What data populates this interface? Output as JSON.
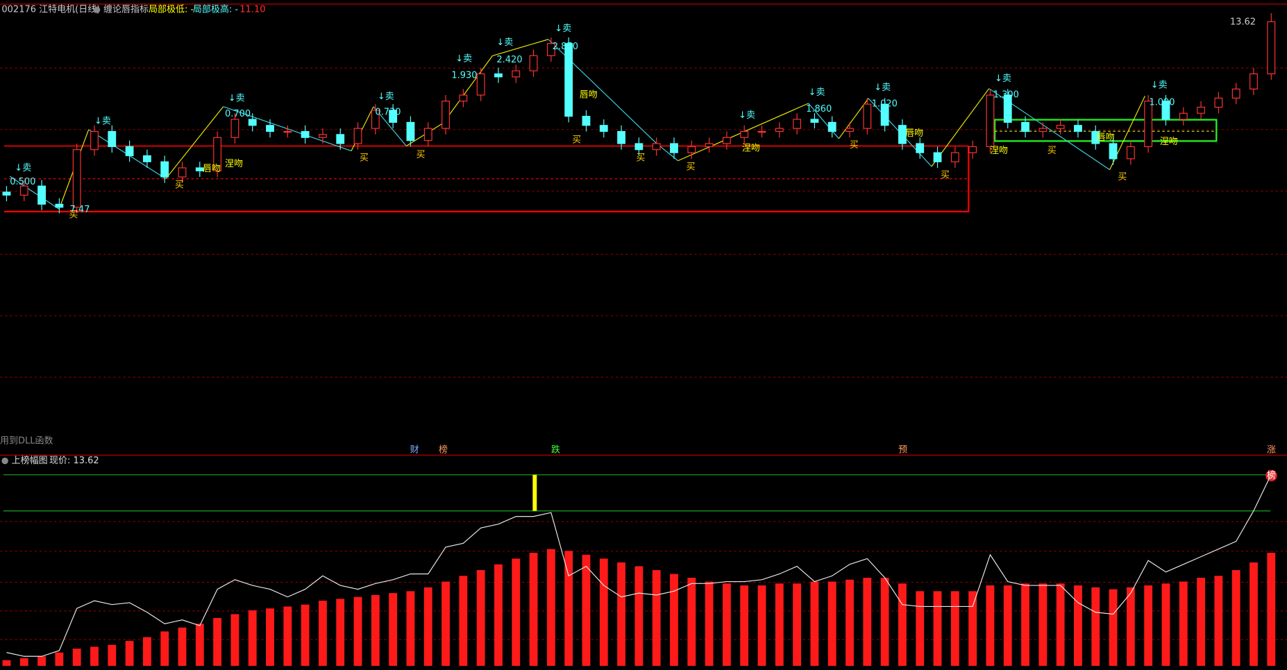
{
  "chart_data": [
    {
      "type": "candlestick",
      "title": "002176 江特电机(日线)",
      "indicator": "缠论唇指标",
      "low_label": "局部极低: -",
      "high_label": "局部极高: -",
      "level_label": "11.10",
      "price_label": "13.62",
      "note": "用到DLL函数",
      "up_color": "#ff3232",
      "down_color": "#54ffff",
      "ylim": [
        0,
        14.2
      ],
      "open": [
        8.0,
        7.9,
        8.2,
        7.6,
        7.5,
        9.4,
        10.0,
        9.5,
        9.2,
        9.0,
        8.5,
        8.8,
        8.7,
        9.8,
        10.4,
        10.2,
        10.0,
        10.0,
        9.8,
        9.9,
        9.6,
        10.1,
        10.7,
        10.3,
        9.7,
        10.1,
        11.0,
        11.2,
        11.9,
        11.8,
        12.0,
        12.5,
        12.9,
        10.5,
        10.2,
        10.0,
        9.6,
        9.4,
        9.6,
        9.3,
        9.5,
        9.6,
        9.8,
        10.0,
        10.0,
        10.1,
        10.4,
        10.3,
        10.0,
        10.1,
        10.9,
        10.2,
        9.6,
        9.3,
        9.0,
        9.3,
        9.5,
        11.2,
        10.3,
        10.0,
        10.1,
        10.2,
        10.0,
        9.6,
        9.1,
        9.5,
        11.0,
        10.4,
        10.6,
        10.8,
        11.1,
        11.4,
        11.9
      ],
      "high": [
        8.2,
        8.4,
        8.4,
        7.8,
        9.6,
        10.2,
        10.2,
        9.7,
        9.4,
        9.2,
        9.0,
        9.0,
        10.0,
        10.6,
        10.6,
        10.4,
        10.2,
        10.2,
        10.1,
        10.1,
        10.3,
        10.9,
        10.9,
        10.5,
        10.3,
        11.2,
        11.4,
        12.1,
        12.1,
        12.2,
        12.7,
        13.1,
        13.1,
        10.7,
        10.4,
        10.2,
        9.8,
        9.8,
        9.8,
        9.7,
        9.8,
        10.0,
        10.2,
        10.2,
        10.3,
        10.6,
        10.6,
        10.5,
        10.3,
        11.1,
        11.1,
        10.4,
        9.8,
        9.5,
        9.5,
        9.7,
        11.4,
        11.4,
        10.5,
        10.3,
        10.4,
        10.4,
        10.2,
        9.8,
        9.7,
        11.2,
        11.2,
        10.8,
        11.0,
        11.3,
        11.6,
        12.1,
        13.9
      ],
      "low": [
        7.7,
        7.7,
        7.4,
        7.3,
        7.3,
        9.2,
        9.3,
        9.0,
        8.8,
        8.3,
        8.3,
        8.5,
        8.5,
        9.6,
        10.0,
        9.8,
        9.8,
        9.6,
        9.6,
        9.4,
        9.4,
        9.9,
        10.1,
        9.5,
        9.5,
        9.9,
        10.8,
        11.0,
        11.6,
        11.6,
        11.8,
        12.3,
        10.3,
        10.0,
        9.8,
        9.4,
        9.2,
        9.2,
        9.1,
        9.1,
        9.3,
        9.4,
        9.6,
        9.8,
        9.8,
        9.9,
        10.1,
        9.8,
        9.8,
        9.9,
        10.0,
        9.4,
        9.1,
        8.8,
        8.8,
        9.1,
        9.3,
        10.1,
        9.8,
        9.8,
        9.9,
        9.8,
        9.4,
        8.9,
        8.9,
        9.3,
        10.2,
        10.2,
        10.4,
        10.6,
        10.9,
        11.2,
        11.7
      ],
      "close": [
        7.9,
        8.2,
        7.6,
        7.5,
        9.4,
        10.0,
        9.5,
        9.2,
        9.0,
        8.5,
        8.8,
        8.7,
        9.8,
        10.4,
        10.2,
        10.0,
        10.0,
        9.8,
        9.9,
        9.6,
        10.1,
        10.7,
        10.3,
        9.7,
        10.1,
        11.0,
        11.2,
        11.9,
        11.8,
        12.0,
        12.5,
        12.9,
        10.5,
        10.2,
        10.0,
        9.6,
        9.4,
        9.6,
        9.3,
        9.5,
        9.6,
        9.8,
        10.0,
        10.0,
        10.1,
        10.4,
        10.3,
        10.0,
        10.1,
        10.9,
        10.2,
        9.6,
        9.3,
        9.0,
        9.3,
        9.5,
        11.2,
        10.3,
        10.0,
        10.1,
        10.2,
        10.0,
        9.6,
        9.1,
        9.5,
        11.0,
        10.4,
        10.6,
        10.8,
        11.1,
        11.4,
        11.9,
        13.62
      ],
      "sell_labels": [
        "↓卖",
        "↓卖",
        "↓卖",
        "↓卖",
        "↓卖",
        "↓卖",
        "↓卖",
        "↓卖",
        "↓卖",
        "↓卖",
        "↓卖",
        "↓卖"
      ],
      "buy_labels": [
        "买",
        "买",
        "买",
        "买",
        "买",
        "买",
        "买",
        "买",
        "买",
        "买",
        "买"
      ],
      "price_labels": [
        "0.500",
        "7.47",
        "0.700",
        "0.730",
        "1.930",
        "2.420",
        "2.870",
        "1.860",
        "1.020",
        "1.300",
        "1.090"
      ],
      "pattern_labels": [
        "唇吻",
        "涅吻",
        "唇吻",
        "涅吻",
        "唇吻",
        "涅吻",
        "唇吻",
        "涅吻"
      ]
    },
    {
      "type": "bar",
      "title": "上榜幅图",
      "subtitle": "现价: 13.62",
      "ylim": [
        0,
        110
      ],
      "markers": [
        "财",
        "榜",
        "跌",
        "预",
        "涨",
        "榜"
      ],
      "series": [
        {
          "type": "bar",
          "color": "#ff1a1a",
          "values": [
            3,
            4,
            5,
            7,
            9,
            10,
            11,
            13,
            15,
            18,
            20,
            22,
            25,
            27,
            29,
            30,
            31,
            32,
            34,
            35,
            36,
            37,
            38,
            39,
            41,
            44,
            47,
            50,
            53,
            56,
            59,
            61,
            60,
            58,
            56,
            54,
            52,
            50,
            48,
            46,
            44,
            43,
            42,
            42,
            43,
            43,
            44,
            44,
            45,
            46,
            46,
            43,
            39,
            39,
            39,
            39,
            42,
            42,
            43,
            43,
            43,
            42,
            41,
            40,
            41,
            42,
            43,
            44,
            46,
            47,
            50,
            54,
            59
          ]
        },
        {
          "type": "line",
          "color": "#e8e8e8",
          "values": [
            7,
            5,
            5,
            8,
            30,
            34,
            32,
            33,
            28,
            22,
            24,
            21,
            40,
            45,
            42,
            40,
            36,
            40,
            47,
            42,
            40,
            43,
            45,
            48,
            48,
            62,
            64,
            72,
            74,
            78,
            78,
            80,
            47,
            52,
            42,
            36,
            38,
            37,
            39,
            43,
            43,
            44,
            44,
            45,
            48,
            52,
            44,
            47,
            53,
            56,
            46,
            32,
            31,
            31,
            31,
            31,
            58,
            44,
            42,
            42,
            42,
            33,
            28,
            27,
            38,
            55,
            49,
            53,
            57,
            61,
            65,
            81,
            100
          ]
        }
      ]
    }
  ]
}
